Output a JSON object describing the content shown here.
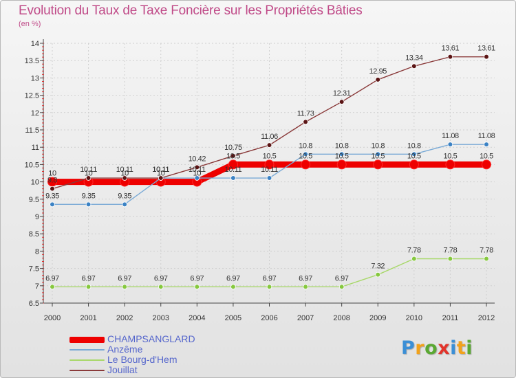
{
  "title": "Evolution du Taux de Taxe Foncière sur les Propriétés Bâties",
  "subtitle": "(en %)",
  "logo": {
    "text": "Proxiti",
    "colors": [
      "#3b8fd6",
      "#f2a21b",
      "#5aa832",
      "#e2342b",
      "#3b8fd6",
      "#f2a21b",
      "#5aa832"
    ]
  },
  "chart_data": {
    "type": "line",
    "x": [
      "2000",
      "2001",
      "2002",
      "2003",
      "2004",
      "2005",
      "2006",
      "2007",
      "2008",
      "2009",
      "2010",
      "2011",
      "2012"
    ],
    "ylim": [
      6.5,
      14
    ],
    "yticks": [
      "6.5",
      "7",
      "7.5",
      "8",
      "8.5",
      "9",
      "9.5",
      "10",
      "10.5",
      "11",
      "11.5",
      "12",
      "12.5",
      "13",
      "13.5",
      "14"
    ],
    "grid": true,
    "legend_position": "bottom-left",
    "series": [
      {
        "name": "CHAMPSANGLARD",
        "color": "#ee0000",
        "marker_stroke": "#ff2a2a",
        "thick": true,
        "values": [
          10,
          10,
          10,
          10,
          10,
          10.5,
          10.5,
          10.5,
          10.5,
          10.5,
          10.5,
          10.5,
          10.5
        ],
        "labels": [
          "10",
          "10",
          "10",
          "10",
          "10",
          "10.5",
          "10.5",
          "10.5",
          "10.5",
          "10.5",
          "10.5",
          "10.5",
          "10.5"
        ]
      },
      {
        "name": "Anzême",
        "color": "#7aaad6",
        "marker_fill": "#3b82c4",
        "thick": false,
        "values": [
          9.35,
          9.35,
          9.35,
          10.11,
          10.11,
          10.11,
          10.11,
          10.8,
          10.8,
          10.8,
          10.8,
          11.08,
          11.08
        ],
        "labels": [
          "9.35",
          "9.35",
          "9.35",
          "10.11",
          "10.11",
          "10.11",
          "10.11",
          "10.8",
          "10.8",
          "10.8",
          "10.8",
          "11.08",
          "11.08"
        ]
      },
      {
        "name": "Le Bourg-d'Hem",
        "color": "#a8d86a",
        "marker_fill": "#86c83f",
        "thick": false,
        "values": [
          6.97,
          6.97,
          6.97,
          6.97,
          6.97,
          6.97,
          6.97,
          6.97,
          6.97,
          7.32,
          7.78,
          7.78,
          7.78
        ],
        "labels": [
          "6.97",
          "6.97",
          "6.97",
          "6.97",
          "6.97",
          "6.97",
          "6.97",
          "6.97",
          "6.97",
          "7.32",
          "7.78",
          "7.78",
          "7.78"
        ]
      },
      {
        "name": "Jouillat",
        "color": "#8a3a3a",
        "marker_fill": "#5a1414",
        "thick": false,
        "values": [
          9.8,
          10.11,
          10.11,
          10.11,
          10.42,
          10.75,
          11.06,
          11.73,
          12.31,
          12.95,
          13.34,
          13.61,
          13.61
        ],
        "labels": [
          "9.8",
          "10.11",
          "10.11",
          "10.11",
          "10.42",
          "10.75",
          "11.06",
          "11.73",
          "12.31",
          "12.95",
          "13.34",
          "13.61",
          "13.61"
        ]
      }
    ]
  }
}
